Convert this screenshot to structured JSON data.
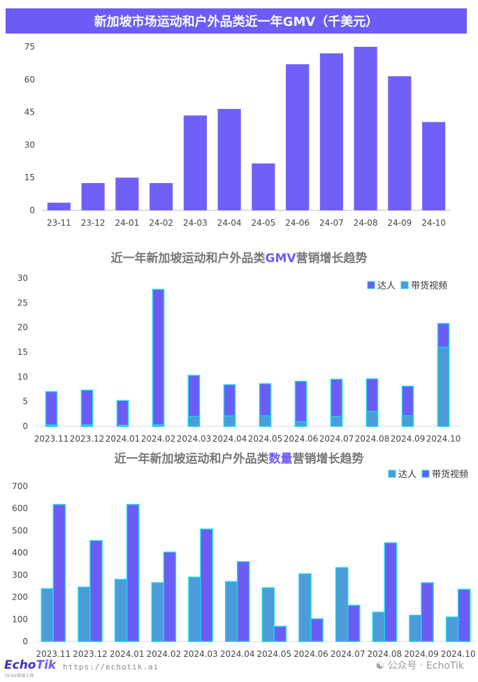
{
  "colors": {
    "banner_bg": "#6b5cf6",
    "bar_primary": "#7060f8",
    "bar_influencer": "#6b5cf6",
    "bar_video": "#4b9cd8",
    "outline_cyan": "#19d3ee",
    "title_gray": "#777777",
    "highlight": "#6b5cf6"
  },
  "header": {
    "title": "新加坡市场运动和户外品类近一年GMV（千美元）"
  },
  "chart2_title": {
    "before": "近一年新加坡运动和户外品类",
    "highlight": "GMV",
    "after": "营销增长趋势"
  },
  "chart3_title": {
    "before": "近一年新加坡运动和户外品类",
    "highlight": "数量",
    "after": "营销增长趋势"
  },
  "legend": {
    "influencer": "达人",
    "video": "带货视频"
  },
  "footer": {
    "brand_a": "Echo",
    "brand_b": "Tik",
    "url": "https://echotik.ai",
    "wechat": "公众号 · EchoTik",
    "subtitle": "TikTok数据工具"
  },
  "chart_data": [
    {
      "type": "bar",
      "title": "新加坡市场运动和户外品类近一年GMV（千美元）",
      "categories": [
        "23-11",
        "23-12",
        "24-01",
        "24-02",
        "24-03",
        "24-04",
        "24-05",
        "24-06",
        "24-07",
        "24-08",
        "24-09",
        "24-10"
      ],
      "values": [
        3.5,
        12.5,
        15,
        12.5,
        43.5,
        46.5,
        21.5,
        67,
        72,
        75,
        61.5,
        40.5
      ],
      "yticks": [
        0,
        15,
        30,
        45,
        60,
        75
      ],
      "ylim": [
        0,
        75
      ],
      "grid": false
    },
    {
      "type": "bar",
      "title": "近一年新加坡运动和户外品类GMV营销增长趋势",
      "categories": [
        "2023.11",
        "2023.12",
        "2024.01",
        "2024.02",
        "2024.03",
        "2024.04",
        "2024.05",
        "2024.06",
        "2024.07",
        "2024.08",
        "2024.09",
        "2024.10"
      ],
      "series": [
        {
          "name": "达人",
          "values": [
            7,
            7.3,
            5.2,
            27.7,
            10.3,
            8.4,
            8.6,
            9.1,
            9.5,
            9.6,
            8.1,
            20.8
          ]
        },
        {
          "name": "带货视频",
          "values": [
            0.3,
            0.3,
            0.2,
            0.3,
            2.0,
            2.1,
            2.1,
            0.9,
            2.0,
            3.0,
            2.1,
            16.0
          ]
        }
      ],
      "stacked": "overlay",
      "yticks": [
        0,
        5,
        10,
        15,
        20,
        25,
        30
      ],
      "ylim": [
        0,
        30
      ],
      "legend": "top-right",
      "grid": false
    },
    {
      "type": "bar",
      "title": "近一年新加坡运动和户外品类数量营销增长趋势",
      "categories": [
        "2023.11",
        "2023.12",
        "2024.01",
        "2024.02",
        "2024.03",
        "2024.04",
        "2024.05",
        "2024.06",
        "2024.07",
        "2024.08",
        "2024.09",
        "2024.10"
      ],
      "series": [
        {
          "name": "达人",
          "values": [
            238,
            245,
            280,
            265,
            290,
            270,
            242,
            305,
            333,
            132,
            118,
            110
          ]
        },
        {
          "name": "带货视频",
          "values": [
            618,
            455,
            618,
            403,
            507,
            360,
            68,
            102,
            163,
            445,
            265,
            235
          ]
        }
      ],
      "yticks": [
        0,
        100,
        200,
        300,
        400,
        500,
        600,
        700
      ],
      "ylim": [
        0,
        700
      ],
      "legend": "top-right",
      "grid": false
    }
  ]
}
